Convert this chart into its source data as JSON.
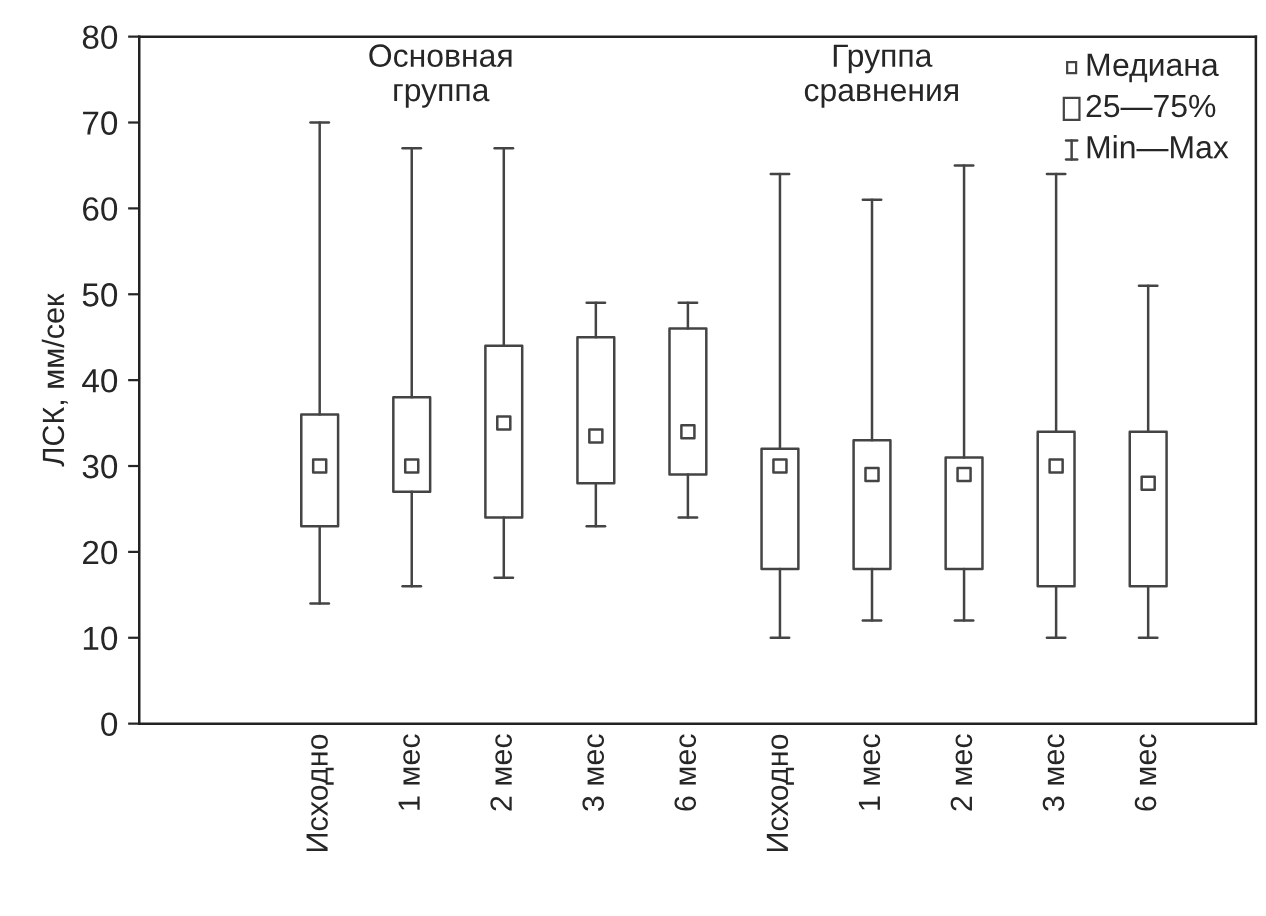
{
  "chart_data": {
    "type": "box",
    "ylabel": "ЛСК, мм/сек",
    "categories": [
      "Исходно",
      "1 мес",
      "2 мес",
      "3 мес",
      "6 мес",
      "Исходно",
      "1 мес",
      "2 мес",
      "3 мес",
      "6 мес"
    ],
    "boxes": [
      {
        "low": 14,
        "q1": 23,
        "median": 30,
        "q3": 36,
        "high": 70
      },
      {
        "low": 16,
        "q1": 27,
        "median": 30,
        "q3": 38,
        "high": 67
      },
      {
        "low": 17,
        "q1": 24,
        "median": 35,
        "q3": 44,
        "high": 67
      },
      {
        "low": 23,
        "q1": 28,
        "median": 33.5,
        "q3": 45,
        "high": 49
      },
      {
        "low": 24,
        "q1": 29,
        "median": 34,
        "q3": 46,
        "high": 49
      },
      {
        "low": 10,
        "q1": 18,
        "median": 30,
        "q3": 32,
        "high": 64
      },
      {
        "low": 12,
        "q1": 18,
        "median": 29,
        "q3": 33,
        "high": 61
      },
      {
        "low": 12,
        "q1": 18,
        "median": 29,
        "q3": 31,
        "high": 65
      },
      {
        "low": 10,
        "q1": 16,
        "median": 30,
        "q3": 34,
        "high": 64
      },
      {
        "low": 10,
        "q1": 16,
        "median": 28,
        "q3": 34,
        "high": 51
      }
    ],
    "color": "#444444",
    "ylim": [
      0,
      80
    ],
    "yticks": [
      0,
      10,
      20,
      30,
      40,
      50,
      60,
      70,
      80
    ],
    "annotations": [
      "Основная\nгруппа",
      "Группа\nсравнения",
      "Медиана",
      "25—75%",
      "Min—Max"
    ],
    "grid": false
  }
}
